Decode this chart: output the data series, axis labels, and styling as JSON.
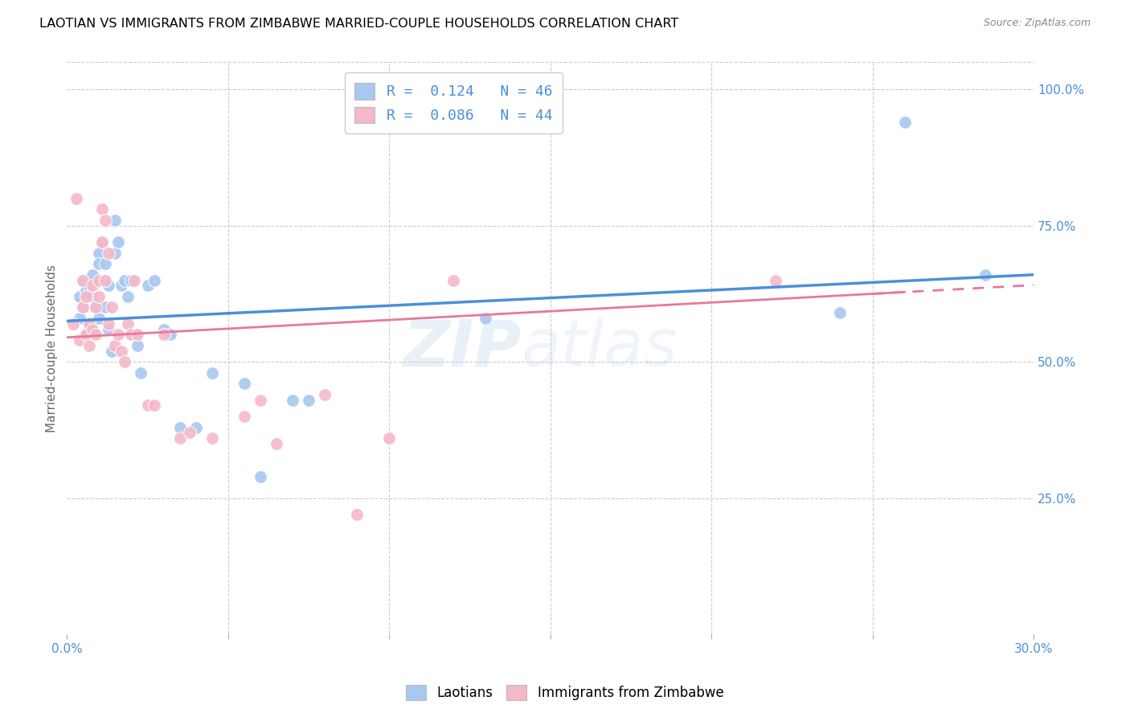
{
  "title": "LAOTIAN VS IMMIGRANTS FROM ZIMBABWE MARRIED-COUPLE HOUSEHOLDS CORRELATION CHART",
  "source": "Source: ZipAtlas.com",
  "ylabel": "Married-couple Households",
  "ylabel_right_ticks": [
    "100.0%",
    "75.0%",
    "50.0%",
    "25.0%"
  ],
  "ylabel_right_vals": [
    1.0,
    0.75,
    0.5,
    0.25
  ],
  "xmin": 0.0,
  "xmax": 0.3,
  "ymin": 0.0,
  "ymax": 1.05,
  "legend_blue_R": "0.124",
  "legend_blue_N": "46",
  "legend_pink_R": "0.086",
  "legend_pink_N": "44",
  "blue_color": "#A8C8F0",
  "pink_color": "#F5B8C8",
  "line_blue": "#4A90D9",
  "line_pink": "#E8789A",
  "watermark": "ZIPatlas",
  "blue_x": [
    0.004,
    0.004,
    0.005,
    0.005,
    0.006,
    0.006,
    0.007,
    0.007,
    0.008,
    0.008,
    0.009,
    0.01,
    0.01,
    0.01,
    0.011,
    0.011,
    0.012,
    0.012,
    0.013,
    0.013,
    0.014,
    0.015,
    0.015,
    0.016,
    0.017,
    0.018,
    0.019,
    0.02,
    0.021,
    0.022,
    0.023,
    0.025,
    0.027,
    0.03,
    0.032,
    0.035,
    0.04,
    0.045,
    0.055,
    0.06,
    0.07,
    0.075,
    0.13,
    0.24,
    0.26,
    0.285
  ],
  "blue_y": [
    0.62,
    0.58,
    0.65,
    0.6,
    0.63,
    0.55,
    0.57,
    0.64,
    0.66,
    0.62,
    0.6,
    0.7,
    0.68,
    0.58,
    0.72,
    0.65,
    0.68,
    0.6,
    0.64,
    0.56,
    0.52,
    0.76,
    0.7,
    0.72,
    0.64,
    0.65,
    0.62,
    0.65,
    0.55,
    0.53,
    0.48,
    0.64,
    0.65,
    0.56,
    0.55,
    0.38,
    0.38,
    0.48,
    0.46,
    0.29,
    0.43,
    0.43,
    0.58,
    0.59,
    0.94,
    0.66
  ],
  "pink_x": [
    0.002,
    0.003,
    0.004,
    0.005,
    0.005,
    0.006,
    0.006,
    0.007,
    0.007,
    0.008,
    0.008,
    0.009,
    0.009,
    0.01,
    0.01,
    0.011,
    0.011,
    0.012,
    0.012,
    0.013,
    0.013,
    0.014,
    0.015,
    0.016,
    0.017,
    0.018,
    0.019,
    0.02,
    0.021,
    0.022,
    0.025,
    0.027,
    0.03,
    0.035,
    0.038,
    0.045,
    0.055,
    0.06,
    0.065,
    0.08,
    0.09,
    0.1,
    0.12,
    0.22
  ],
  "pink_y": [
    0.57,
    0.8,
    0.54,
    0.65,
    0.6,
    0.62,
    0.55,
    0.57,
    0.53,
    0.64,
    0.56,
    0.6,
    0.55,
    0.65,
    0.62,
    0.78,
    0.72,
    0.76,
    0.65,
    0.7,
    0.57,
    0.6,
    0.53,
    0.55,
    0.52,
    0.5,
    0.57,
    0.55,
    0.65,
    0.55,
    0.42,
    0.42,
    0.55,
    0.36,
    0.37,
    0.36,
    0.4,
    0.43,
    0.35,
    0.44,
    0.22,
    0.36,
    0.65,
    0.65
  ]
}
